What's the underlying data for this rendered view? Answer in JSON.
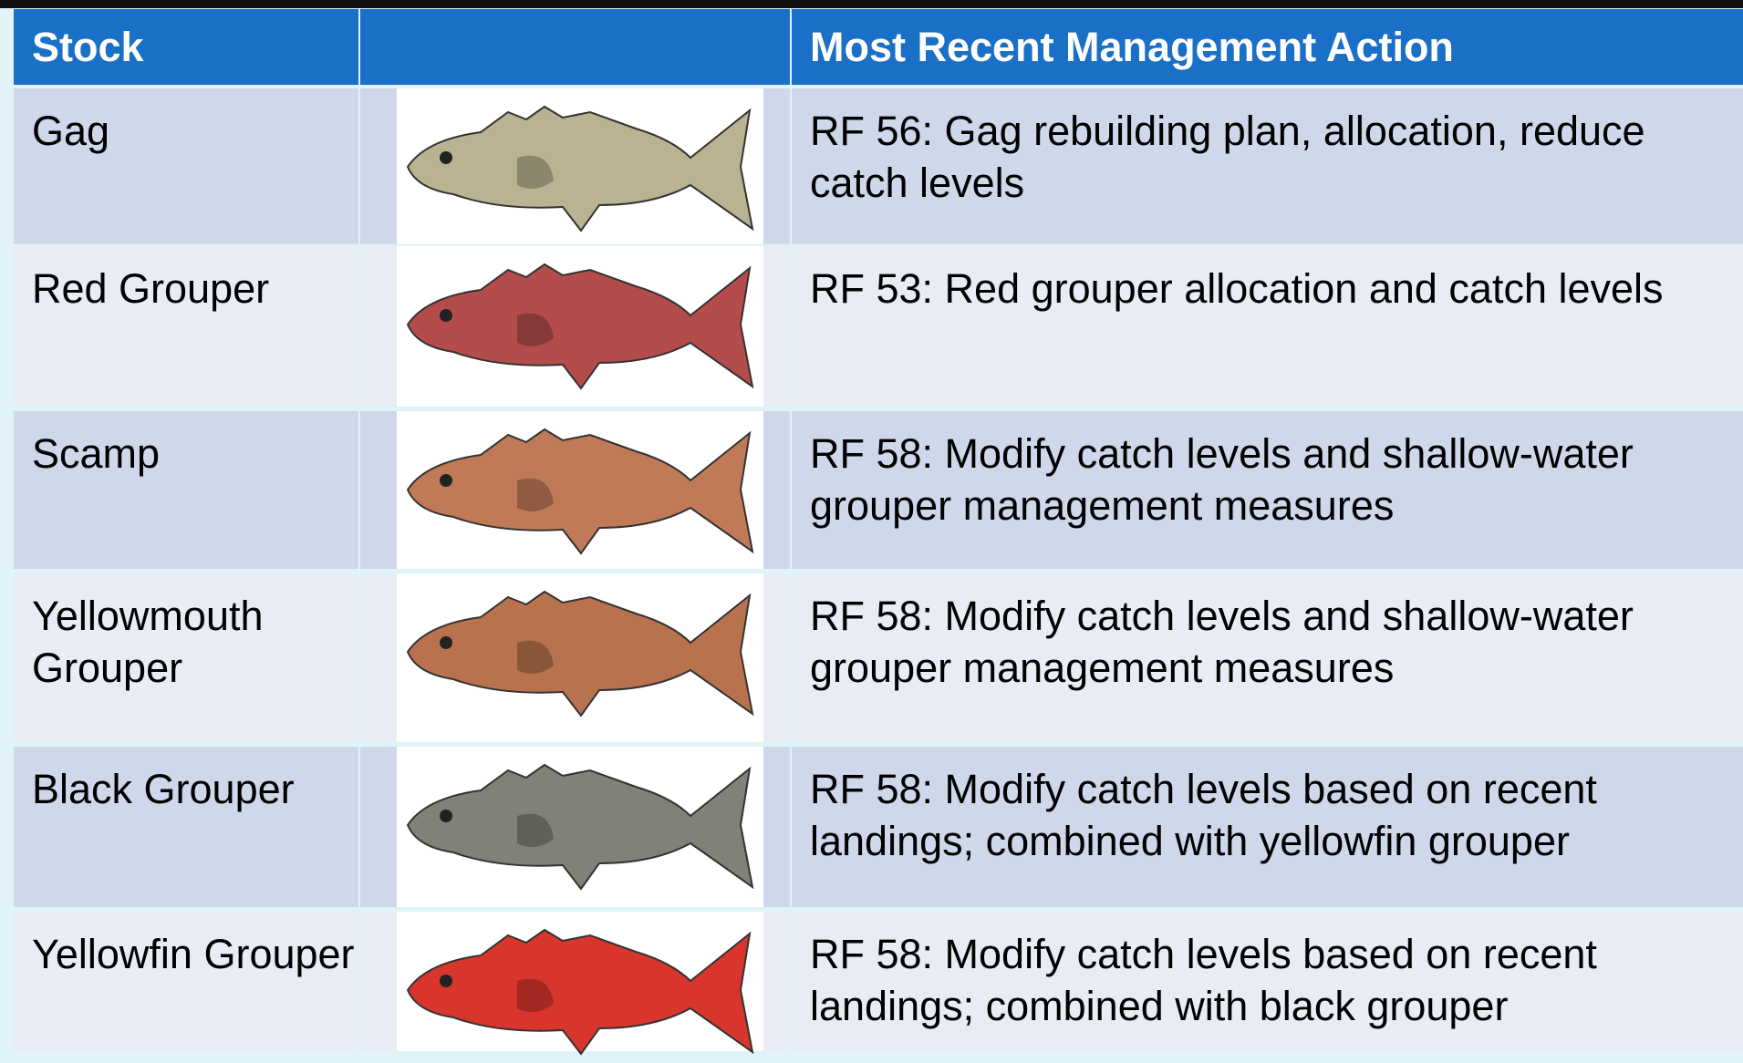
{
  "header": {
    "stock_label": "Stock",
    "action_label": "Most Recent Management Action"
  },
  "rows": [
    {
      "stock": "Gag",
      "action": "RF 56: Gag rebuilding plan, allocation, reduce catch levels"
    },
    {
      "stock": "Red Grouper",
      "action": "RF 53: Red grouper allocation and catch levels"
    },
    {
      "stock": "Scamp",
      "action": "RF 58: Modify catch levels and shallow-water grouper management measures"
    },
    {
      "stock": "Yellowmouth Grouper",
      "action": "RF 58: Modify catch levels and shallow-water grouper management measures"
    },
    {
      "stock": "Black Grouper",
      "action": "RF 58: Modify catch levels based on recent landings; combined with yellowfin grouper"
    },
    {
      "stock": "Yellowfin Grouper",
      "action": "RF 58: Modify catch levels based on recent landings; combined with black grouper"
    }
  ]
}
